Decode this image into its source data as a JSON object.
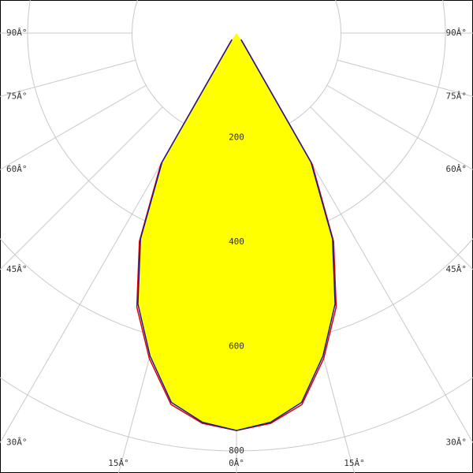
{
  "chart_data": {
    "type": "polar",
    "angles": [
      -35,
      -30,
      -25,
      -20,
      -15,
      -10,
      -5,
      0,
      5,
      10,
      15,
      20,
      25,
      30,
      35
    ],
    "series": [
      {
        "color": "#e00000",
        "values": [
          18,
          290,
          440,
          558,
          645,
          722,
          750,
          761,
          750,
          722,
          645,
          558,
          440,
          290,
          18
        ]
      },
      {
        "color": "#1a1aa0",
        "values": [
          15,
          285,
          435,
          552,
          640,
          718,
          748,
          761,
          748,
          718,
          640,
          552,
          435,
          285,
          15
        ]
      }
    ],
    "fill": "#ffff00",
    "rlim": [
      0,
      800
    ],
    "rticks": [
      200,
      400,
      600,
      800
    ],
    "angle_ticks": [
      {
        "value": 0,
        "label": "0Â°"
      },
      {
        "value": 15,
        "label": "15Â°"
      },
      {
        "value": 30,
        "label": "30Â°"
      },
      {
        "value": 45,
        "label": "45Â°"
      },
      {
        "value": 60,
        "label": "60Â°"
      },
      {
        "value": 75,
        "label": "75Â°"
      },
      {
        "value": 90,
        "label": "90Â°"
      }
    ],
    "grid": true
  }
}
